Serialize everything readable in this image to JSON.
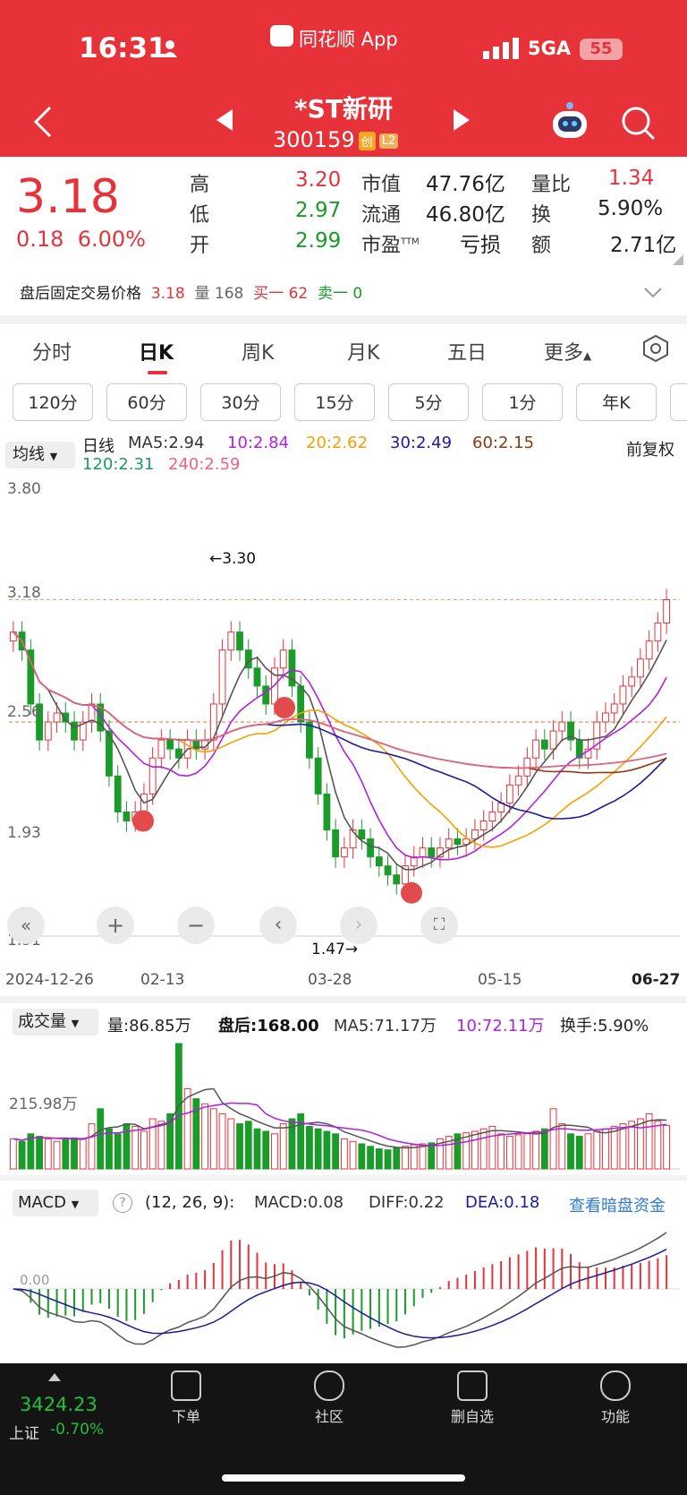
{
  "status_bar": {
    "time": "16:31",
    "app_name": "同花顺 App",
    "network": "5GA",
    "battery": "55"
  },
  "header": {
    "title": "*ST新研",
    "code": "300159",
    "tag1": "创",
    "tag2": "L2"
  },
  "quote": {
    "price": "3.18",
    "change": "0.18",
    "change_pct": "6.00%",
    "high_label": "高",
    "high": "3.20",
    "low_label": "低",
    "low": "2.97",
    "open_label": "开",
    "open": "2.99",
    "mktcap_label": "市值",
    "mktcap": "47.76亿",
    "float_label": "流通",
    "float": "46.80亿",
    "pe_label": "市盈",
    "pe_sup": "TTM",
    "pe": "亏损",
    "volratio_label": "量比",
    "volratio": "1.34",
    "turnover_label": "换",
    "turnover": "5.90%",
    "amount_label": "额",
    "amount": "2.71亿"
  },
  "after_hours": {
    "label": "盘后固定交易价格",
    "price": "3.18",
    "vol_label": "量",
    "vol": "168",
    "buy_label": "买一",
    "buy": "62",
    "sell_label": "卖一",
    "sell": "0"
  },
  "tabs": [
    "分时",
    "日K",
    "周K",
    "月K",
    "五日",
    "更多"
  ],
  "active_tab": "日K",
  "periods": [
    "120分",
    "60分",
    "30分",
    "15分",
    "5分",
    "1分",
    "年K"
  ],
  "ma_legend": {
    "selector": "均线",
    "type": "日线",
    "ma5": "MA5:2.94",
    "ma10": "10:2.84",
    "ma20": "20:2.62",
    "ma30": "30:2.49",
    "ma60": "60:2.15",
    "ma120": "120:2.31",
    "ma240": "240:2.59",
    "adjust": "前复权"
  },
  "kchart": {
    "y_ticks": [
      "3.80",
      "3.18",
      "2.56",
      "1.93",
      "1.31"
    ],
    "x_ticks": [
      "2024-12-26",
      "02-13",
      "03-28",
      "05-15",
      "06-27"
    ],
    "max_label": "←3.30",
    "min_label": "1.47→"
  },
  "volume": {
    "selector": "成交量",
    "vol": "量:86.85万",
    "after": "盘后:168.00",
    "ma5": "MA5:71.17万",
    "ma10": "10:72.11万",
    "turnover": "换手:5.90%",
    "tick": "215.98万"
  },
  "macd": {
    "selector": "MACD",
    "params": "(12, 26, 9):",
    "macd": "MACD:0.08",
    "diff": "DIFF:0.22",
    "dea": "DEA:0.18",
    "link": "查看暗盘资金",
    "tick": "0.00"
  },
  "bottom_bar": {
    "index_value": "3424.23",
    "index_name": "上证",
    "index_change": "-0.70%",
    "items": [
      "下单",
      "社区",
      "删自选",
      "功能"
    ]
  },
  "colors": {
    "header": "#e8323a",
    "up": "#e8323a",
    "down": "#1a9b2a"
  },
  "chart_data": {
    "type": "candlestick",
    "y_range": [
      1.31,
      3.8
    ],
    "x_range": [
      "2024-12-26",
      "06-27"
    ],
    "approx_close": [
      3.0,
      2.9,
      2.6,
      2.4,
      2.5,
      2.55,
      2.5,
      2.4,
      2.5,
      2.6,
      2.45,
      2.2,
      2.0,
      1.95,
      2.0,
      2.1,
      2.3,
      2.4,
      2.35,
      2.3,
      2.4,
      2.35,
      2.4,
      2.6,
      2.9,
      3.0,
      2.9,
      2.8,
      2.7,
      2.6,
      2.8,
      2.9,
      2.7,
      2.5,
      2.3,
      2.1,
      1.9,
      1.75,
      1.8,
      1.9,
      1.85,
      1.75,
      1.7,
      1.65,
      1.6,
      1.7,
      1.75,
      1.8,
      1.75,
      1.8,
      1.85,
      1.82,
      1.85,
      1.9,
      1.95,
      2.0,
      2.05,
      2.15,
      2.2,
      2.3,
      2.4,
      2.35,
      2.45,
      2.5,
      2.4,
      2.3,
      2.35,
      2.5,
      2.55,
      2.6,
      2.7,
      2.75,
      2.85,
      2.95,
      3.05,
      3.18
    ],
    "volume_approx_wan": [
      60,
      55,
      70,
      65,
      60,
      55,
      58,
      62,
      60,
      90,
      120,
      80,
      70,
      90,
      85,
      75,
      100,
      95,
      110,
      250,
      160,
      140,
      130,
      120,
      110,
      100,
      90,
      95,
      80,
      75,
      70,
      90,
      100,
      110,
      85,
      80,
      75,
      70,
      60,
      55,
      50,
      45,
      40,
      38,
      42,
      45,
      48,
      50,
      52,
      60,
      65,
      70,
      72,
      75,
      80,
      85,
      70,
      65,
      68,
      70,
      75,
      80,
      120,
      90,
      70,
      65,
      70,
      75,
      80,
      85,
      90,
      95,
      100,
      110,
      95,
      86.85
    ]
  }
}
